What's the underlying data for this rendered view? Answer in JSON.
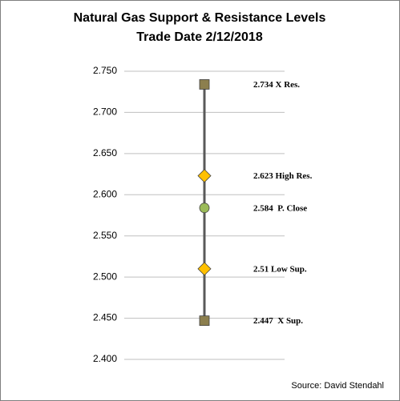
{
  "chart_data": {
    "type": "line",
    "title": "Natural Gas Support & Resistance Levels",
    "subtitle": "Trade Date 2/12/2018",
    "values": [
      2.734,
      2.623,
      2.584,
      2.51,
      2.447
    ],
    "value_labels": [
      "2.734 X Res.",
      "2.623 High Res.",
      "2.584  P. Close",
      "2.51 Low Sup.",
      "2.447  X Sup."
    ],
    "marker_shapes": [
      "square",
      "diamond",
      "circle",
      "diamond",
      "square"
    ],
    "marker_colors": [
      "#8c7f4e",
      "#ffc000",
      "#9bbb59",
      "#ffc000",
      "#8c7f4e"
    ],
    "color": "#595959",
    "ylim": [
      2.4,
      2.75
    ],
    "yticks": [
      {
        "value": 2.4,
        "label": "2.400"
      },
      {
        "value": 2.45,
        "label": "2.450"
      },
      {
        "value": 2.5,
        "label": "2.500"
      },
      {
        "value": 2.55,
        "label": "2.550"
      },
      {
        "value": 2.6,
        "label": "2.600"
      },
      {
        "value": 2.65,
        "label": "2.650"
      },
      {
        "value": 2.7,
        "label": "2.700"
      },
      {
        "value": 2.75,
        "label": "2.750"
      }
    ],
    "grid": true,
    "source": "Source: David Stendahl"
  }
}
